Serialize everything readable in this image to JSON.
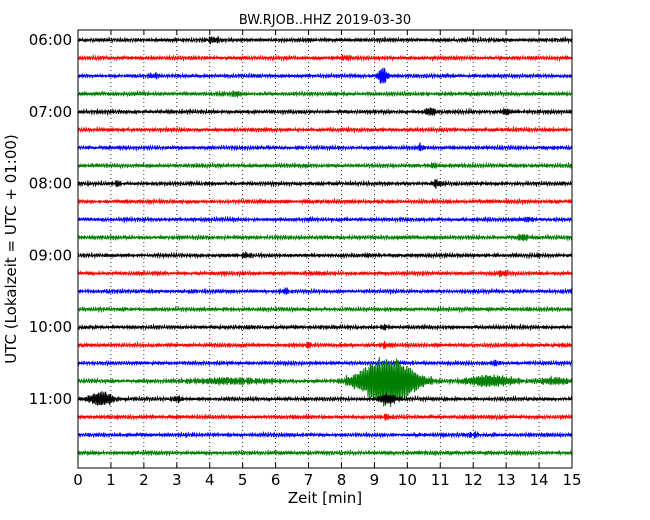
{
  "chart_data": {
    "type": "line",
    "title": "BW.RJOB..HHZ 2019-03-30",
    "xlabel": "Zeit  [min]",
    "ylabel": "UTC (Lokalzeit = UTC + 01:00)",
    "xlim": [
      0,
      15
    ],
    "x_ticks": [
      "0",
      "1",
      "2",
      "3",
      "4",
      "5",
      "6",
      "7",
      "8",
      "9",
      "10",
      "11",
      "12",
      "13",
      "14",
      "15"
    ],
    "y_tick_labels": [
      "06:00",
      "07:00",
      "08:00",
      "09:00",
      "10:00",
      "11:00"
    ],
    "grid": "vertical dotted at every minute",
    "trace_interval_min": 15,
    "start_time": "06:00",
    "trace_colors": [
      "#000000",
      "#ff0000",
      "#0000ff",
      "#007f00"
    ],
    "traces": [
      {
        "start": "06:00",
        "events": [
          {
            "t": 4.1,
            "amp": 1.6,
            "dur": 0.4
          }
        ]
      },
      {
        "start": "06:15",
        "events": [
          {
            "t": 8.1,
            "amp": 1.2,
            "dur": 0.3
          }
        ]
      },
      {
        "start": "06:30",
        "events": [
          {
            "t": 2.3,
            "amp": 1.4,
            "dur": 0.3
          },
          {
            "t": 9.25,
            "amp": 4.5,
            "dur": 0.3
          }
        ]
      },
      {
        "start": "06:45",
        "events": [
          {
            "t": 4.8,
            "amp": 1.3,
            "dur": 0.3
          }
        ]
      },
      {
        "start": "07:00",
        "events": [
          {
            "t": 10.7,
            "amp": 2.0,
            "dur": 0.4
          },
          {
            "t": 13.0,
            "amp": 1.6,
            "dur": 0.3
          }
        ]
      },
      {
        "start": "07:15",
        "events": []
      },
      {
        "start": "07:30",
        "events": [
          {
            "t": 10.4,
            "amp": 1.4,
            "dur": 0.3
          }
        ]
      },
      {
        "start": "07:45",
        "events": [
          {
            "t": 10.8,
            "amp": 1.3,
            "dur": 0.3
          }
        ]
      },
      {
        "start": "08:00",
        "events": [
          {
            "t": 1.2,
            "amp": 1.4,
            "dur": 0.3
          },
          {
            "t": 10.9,
            "amp": 1.8,
            "dur": 0.3
          }
        ]
      },
      {
        "start": "08:15",
        "events": []
      },
      {
        "start": "08:30",
        "events": [
          {
            "t": 13.7,
            "amp": 1.3,
            "dur": 0.3
          }
        ]
      },
      {
        "start": "08:45",
        "events": [
          {
            "t": 13.5,
            "amp": 1.8,
            "dur": 0.4
          }
        ]
      },
      {
        "start": "09:00",
        "events": [
          {
            "t": 5.1,
            "amp": 1.4,
            "dur": 0.3
          }
        ]
      },
      {
        "start": "09:15",
        "events": [
          {
            "t": 12.9,
            "amp": 1.6,
            "dur": 0.3
          }
        ]
      },
      {
        "start": "09:30",
        "events": [
          {
            "t": 6.3,
            "amp": 1.4,
            "dur": 0.3
          }
        ]
      },
      {
        "start": "09:45",
        "events": []
      },
      {
        "start": "10:00",
        "events": [
          {
            "t": 9.3,
            "amp": 1.3,
            "dur": 0.3
          }
        ]
      },
      {
        "start": "10:15",
        "events": [
          {
            "t": 7.0,
            "amp": 1.3,
            "dur": 0.3
          },
          {
            "t": 9.3,
            "amp": 1.4,
            "dur": 0.3
          }
        ]
      },
      {
        "start": "10:30",
        "events": [
          {
            "t": 12.7,
            "amp": 1.3,
            "dur": 0.3
          }
        ]
      },
      {
        "start": "10:45",
        "events": [
          {
            "t": 4.6,
            "amp": 1.6,
            "dur": 2.6
          },
          {
            "t": 9.4,
            "amp": 12.0,
            "dur": 1.8
          },
          {
            "t": 12.5,
            "amp": 3.0,
            "dur": 1.6
          },
          {
            "t": 14.5,
            "amp": 1.8,
            "dur": 1.0
          }
        ]
      },
      {
        "start": "11:00",
        "events": [
          {
            "t": 0.7,
            "amp": 3.5,
            "dur": 0.8
          },
          {
            "t": 3.0,
            "amp": 1.5,
            "dur": 0.4
          },
          {
            "t": 9.4,
            "amp": 2.5,
            "dur": 0.6
          }
        ]
      },
      {
        "start": "11:15",
        "events": [
          {
            "t": 9.35,
            "amp": 1.4,
            "dur": 0.3
          }
        ]
      },
      {
        "start": "11:30",
        "events": [
          {
            "t": 12.0,
            "amp": 1.3,
            "dur": 0.3
          }
        ]
      },
      {
        "start": "11:45",
        "events": []
      }
    ]
  }
}
